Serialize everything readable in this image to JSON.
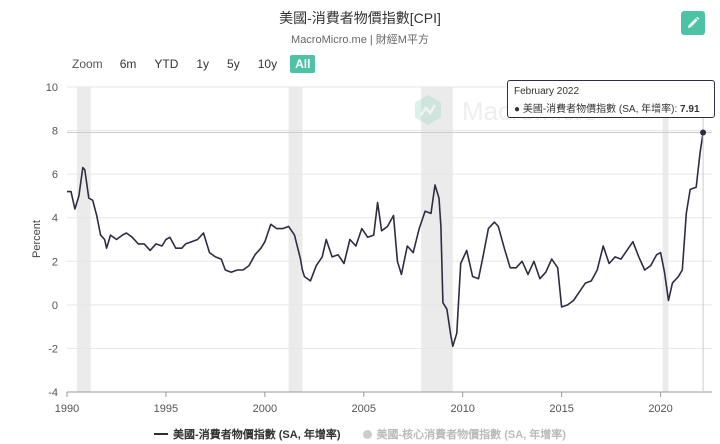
{
  "header": {
    "title": "美國-消費者物價指數[CPI]",
    "subtitle": "MacroMicro.me | 財經M平方"
  },
  "toolbar": {
    "zoom_label": "Zoom",
    "ranges": [
      "6m",
      "YTD",
      "1y",
      "5y",
      "10y",
      "All"
    ],
    "active_range": "All",
    "edit_icon": "pencil-icon"
  },
  "watermark": {
    "text": "MacroMicro"
  },
  "tooltip": {
    "date": "February 2022",
    "series_label": "● 美國-消費者物價指數 (SA, 年增率):",
    "value": "7.91"
  },
  "legend": {
    "items": [
      {
        "label": "美國-消費者物價指數 (SA, 年增率)",
        "visible": true
      },
      {
        "label": "美國-核心消費者物價指數 (SA, 年增率)",
        "visible": false
      }
    ]
  },
  "colors": {
    "line": "#2d2d42",
    "accent": "#4cc3a5",
    "recession": "#ebebeb",
    "grid": "#e6e6e6"
  },
  "chart_data": {
    "type": "line",
    "ylabel": "Percent",
    "ylim": [
      -4,
      10
    ],
    "yticks": [
      -4,
      -2,
      0,
      2,
      4,
      6,
      8,
      10
    ],
    "xlim": [
      1990,
      2022.6
    ],
    "xticks": [
      1990,
      1995,
      2000,
      2005,
      2010,
      2015,
      2020
    ],
    "recessions": [
      [
        1990.5,
        1991.2
      ],
      [
        2001.2,
        2001.9
      ],
      [
        2007.9,
        2009.5
      ],
      [
        2020.1,
        2020.4
      ]
    ],
    "series": [
      {
        "name": "美國-消費者物價指數 (SA, 年增率)",
        "x": [
          1990.0,
          1990.2,
          1990.4,
          1990.6,
          1990.8,
          1990.9,
          1991.1,
          1991.3,
          1991.5,
          1991.7,
          1991.9,
          1992.0,
          1992.2,
          1992.5,
          1992.8,
          1993.0,
          1993.3,
          1993.6,
          1993.9,
          1994.2,
          1994.5,
          1994.8,
          1995.0,
          1995.2,
          1995.5,
          1995.8,
          1996.0,
          1996.3,
          1996.6,
          1996.9,
          1997.2,
          1997.5,
          1997.8,
          1998.0,
          1998.3,
          1998.6,
          1998.9,
          1999.2,
          1999.5,
          1999.8,
          2000.0,
          2000.3,
          2000.6,
          2000.9,
          2001.2,
          2001.5,
          2001.8,
          2001.9,
          2002.0,
          2002.3,
          2002.6,
          2002.9,
          2003.1,
          2003.4,
          2003.7,
          2004.0,
          2004.3,
          2004.6,
          2004.9,
          2005.2,
          2005.5,
          2005.7,
          2005.9,
          2006.2,
          2006.5,
          2006.7,
          2006.9,
          2007.2,
          2007.5,
          2007.8,
          2008.1,
          2008.4,
          2008.6,
          2008.8,
          2008.9,
          2009.0,
          2009.2,
          2009.4,
          2009.5,
          2009.7,
          2009.9,
          2010.2,
          2010.5,
          2010.8,
          2011.0,
          2011.3,
          2011.6,
          2011.8,
          2012.1,
          2012.4,
          2012.7,
          2013.0,
          2013.3,
          2013.6,
          2013.9,
          2014.2,
          2014.5,
          2014.8,
          2015.0,
          2015.3,
          2015.6,
          2015.9,
          2016.2,
          2016.5,
          2016.8,
          2017.1,
          2017.4,
          2017.7,
          2018.0,
          2018.3,
          2018.6,
          2018.9,
          2019.2,
          2019.5,
          2019.8,
          2020.0,
          2020.2,
          2020.4,
          2020.6,
          2020.9,
          2021.1,
          2021.3,
          2021.5,
          2021.8,
          2022.0,
          2022.15
        ],
        "values": [
          5.2,
          5.2,
          4.4,
          5.0,
          6.3,
          6.2,
          4.9,
          4.8,
          4.1,
          3.2,
          3.0,
          2.6,
          3.2,
          3.0,
          3.2,
          3.3,
          3.1,
          2.8,
          2.8,
          2.5,
          2.8,
          2.7,
          3.0,
          3.1,
          2.6,
          2.6,
          2.8,
          2.9,
          3.0,
          3.3,
          2.4,
          2.2,
          2.1,
          1.6,
          1.5,
          1.6,
          1.6,
          1.8,
          2.3,
          2.6,
          2.9,
          3.7,
          3.5,
          3.5,
          3.6,
          3.2,
          2.1,
          1.6,
          1.3,
          1.1,
          1.8,
          2.2,
          3.0,
          2.2,
          2.3,
          1.9,
          3.0,
          2.7,
          3.5,
          3.1,
          3.2,
          4.7,
          3.4,
          3.6,
          4.1,
          2.0,
          1.4,
          2.7,
          2.4,
          3.5,
          4.3,
          4.2,
          5.5,
          4.9,
          3.6,
          0.1,
          -0.2,
          -1.4,
          -1.9,
          -1.3,
          1.9,
          2.5,
          1.3,
          1.2,
          2.1,
          3.5,
          3.8,
          3.6,
          2.6,
          1.7,
          1.7,
          2.0,
          1.4,
          2.0,
          1.2,
          1.5,
          2.1,
          1.7,
          -0.1,
          0.0,
          0.2,
          0.6,
          1.0,
          1.1,
          1.6,
          2.7,
          1.9,
          2.2,
          2.1,
          2.5,
          2.9,
          2.2,
          1.6,
          1.8,
          2.3,
          2.4,
          1.5,
          0.2,
          1.0,
          1.3,
          1.6,
          4.2,
          5.3,
          5.4,
          7.0,
          7.91
        ]
      }
    ]
  }
}
